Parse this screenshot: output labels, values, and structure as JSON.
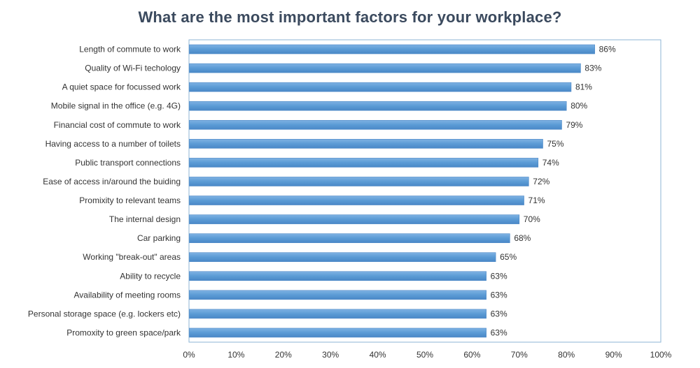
{
  "chart_data": {
    "type": "bar",
    "orientation": "horizontal",
    "title": "What are the most important factors for your workplace?",
    "categories": [
      "Length of commute to work",
      "Quality of Wi-Fi techology",
      "A quiet space for focussed work",
      "Mobile signal in the office (e.g. 4G)",
      "Financial cost of commute to work",
      "Having access to a number of toilets",
      "Public transport connections",
      "Ease of access in/around the buiding",
      "Promixity to relevant teams",
      "The internal design ",
      "Car parking",
      "Working \"break-out\" areas",
      "Ability to recycle",
      "Availability of meeting rooms",
      "Personal storage space (e.g. lockers etc)",
      "Promoxity to green space/park"
    ],
    "values": [
      86,
      83,
      81,
      80,
      79,
      75,
      74,
      72,
      71,
      70,
      68,
      65,
      63,
      63,
      63,
      63
    ],
    "data_labels": [
      "86%",
      "83%",
      "81%",
      "80%",
      "79%",
      "75%",
      "74%",
      "72%",
      "71%",
      "70%",
      "68%",
      "65%",
      "63%",
      "63%",
      "63%",
      "63%"
    ],
    "xlim": [
      0,
      100
    ],
    "xticks": [
      0,
      10,
      20,
      30,
      40,
      50,
      60,
      70,
      80,
      90,
      100
    ],
    "xtick_labels": [
      "0%",
      "10%",
      "20%",
      "30%",
      "40%",
      "50%",
      "60%",
      "70%",
      "80%",
      "90%",
      "100%"
    ],
    "xlabel": "",
    "ylabel": "",
    "grid": false,
    "legend": "none",
    "colors": {
      "bar_fill": "#5b9bd5",
      "bar_edge": "#4a86c5",
      "plot_border": "#8eb4d6",
      "title": "#3b4a5e",
      "text": "#333333"
    }
  }
}
